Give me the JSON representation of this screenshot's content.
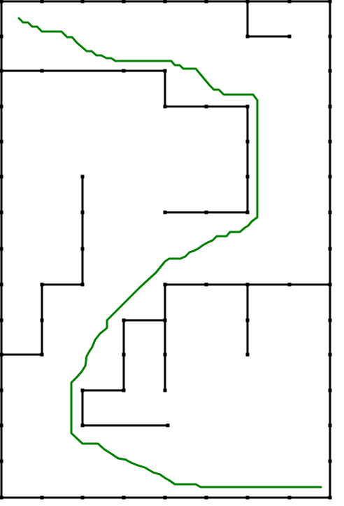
{
  "colors": {
    "background": "#ffffff",
    "wall": "#000000",
    "path": "#008000",
    "node": "#000000"
  },
  "maze": {
    "kind": "grid maze with solution path",
    "wall_style": "black polylines with small square dots at grid nodes",
    "path_style": "thin green stepped polyline from upper-left start to lower-right end"
  }
}
